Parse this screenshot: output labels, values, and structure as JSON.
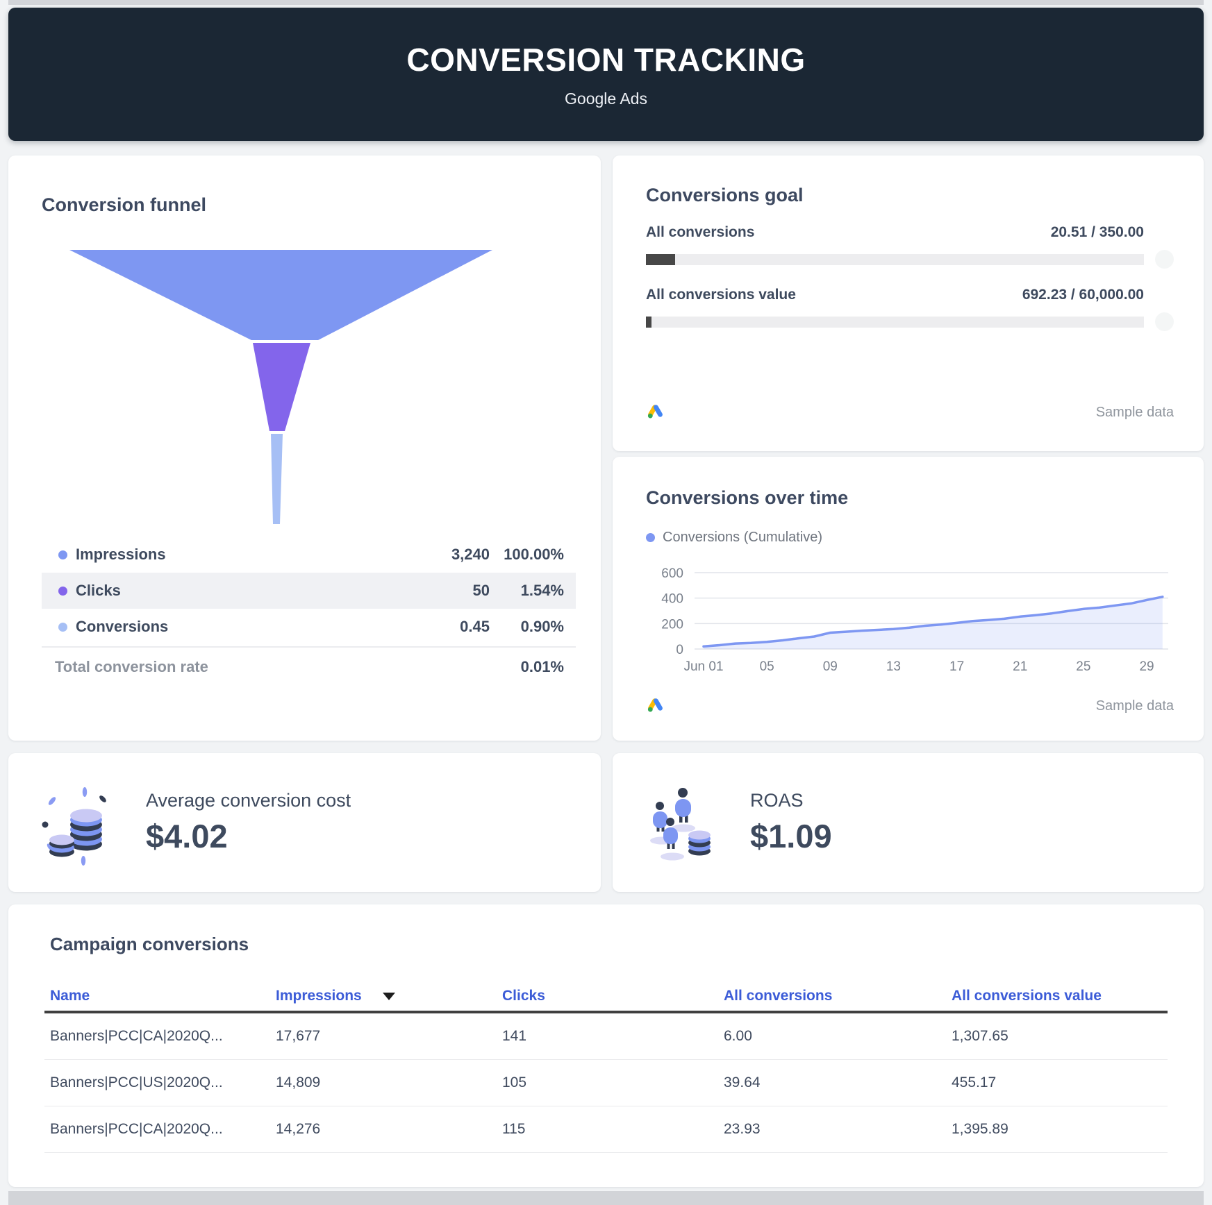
{
  "colors": {
    "banner_bg": "#1b2734",
    "accent_table_header": "#3c5cd7",
    "funnel_impressions": "#7e97f2",
    "funnel_clicks": "#8365eb",
    "funnel_conversions": "#a6bff5",
    "progress_fill": "#474747",
    "progress_track": "#ededef",
    "google_ads_blue": "#4285F4",
    "google_ads_yellow": "#FBBC04",
    "google_ads_green": "#34A853"
  },
  "header": {
    "title": "CONVERSION TRACKING",
    "subtitle": "Google Ads"
  },
  "funnel_card": {
    "title": "Conversion funnel",
    "rows": [
      {
        "label": "Impressions",
        "value": "3,240",
        "percent": "100.00%",
        "color": "#7e97f2"
      },
      {
        "label": "Clicks",
        "value": "50",
        "percent": "1.54%",
        "color": "#8365eb"
      },
      {
        "label": "Conversions",
        "value": "0.45",
        "percent": "0.90%",
        "color": "#a6bff5"
      }
    ],
    "total_label": "Total conversion rate",
    "total_value": "0.01%"
  },
  "goal_card": {
    "title": "Conversions goal",
    "rows": [
      {
        "label": "All conversions",
        "value": "20.51 / 350.00",
        "progress_pct": 5.86
      },
      {
        "label": "All conversions value",
        "value": "692.23 / 60,000.00",
        "progress_pct": 1.15
      }
    ],
    "sample_label": "Sample data"
  },
  "time_card": {
    "title": "Conversions over time",
    "legend": "Conversions (Cumulative)",
    "sample_label": "Sample data"
  },
  "metrics": [
    {
      "label": "Average conversion cost",
      "value": "$4.02"
    },
    {
      "label": "ROAS",
      "value": "$1.09"
    }
  ],
  "table_card": {
    "title": "Campaign conversions",
    "columns": [
      "Name",
      "Impressions",
      "Clicks",
      "All conversions",
      "All conversions value"
    ],
    "sorted_by": "Impressions",
    "sort_direction": "desc",
    "rows": [
      [
        "Banners|PCC|CA|2020Q...",
        "17,677",
        "141",
        "6.00",
        "1,307.65"
      ],
      [
        "Banners|PCC|US|2020Q...",
        "14,809",
        "105",
        "39.64",
        "455.17"
      ],
      [
        "Banners|PCC|CA|2020Q...",
        "14,276",
        "115",
        "23.93",
        "1,395.89"
      ]
    ]
  },
  "chart_data": [
    {
      "type": "funnel",
      "title": "Conversion funnel",
      "stages": [
        {
          "label": "Impressions",
          "value": 3240,
          "percent": 100.0,
          "color": "#7e97f2"
        },
        {
          "label": "Clicks",
          "value": 50,
          "percent": 1.54,
          "color": "#8365eb"
        },
        {
          "label": "Conversions",
          "value": 0.45,
          "percent": 0.9,
          "color": "#a6bff5"
        }
      ],
      "total_conversion_rate_pct": 0.01
    },
    {
      "type": "area",
      "title": "Conversions over time",
      "series": [
        {
          "name": "Conversions (Cumulative)",
          "x": [
            1,
            2,
            3,
            4,
            5,
            6,
            7,
            8,
            9,
            10,
            11,
            12,
            13,
            14,
            15,
            16,
            17,
            18,
            19,
            20,
            21,
            22,
            23,
            24,
            25,
            26,
            27,
            28,
            29,
            30
          ],
          "values": [
            20,
            30,
            43,
            48,
            56,
            68,
            84,
            98,
            128,
            136,
            144,
            150,
            157,
            168,
            183,
            192,
            205,
            220,
            228,
            238,
            255,
            266,
            280,
            298,
            315,
            325,
            342,
            358,
            385,
            410
          ]
        }
      ],
      "xtick_labels": {
        "1": "Jun 01",
        "5": "05",
        "9": "09",
        "13": "13",
        "17": "17",
        "21": "21",
        "25": "25",
        "29": "29"
      },
      "ylim": [
        0,
        600
      ],
      "yticks": [
        0,
        200,
        400,
        600
      ],
      "grid": true,
      "legend_position": "top-left",
      "line_color": "#7e97f2",
      "area_fill": "#7e97f2",
      "area_opacity": 0.16
    }
  ]
}
